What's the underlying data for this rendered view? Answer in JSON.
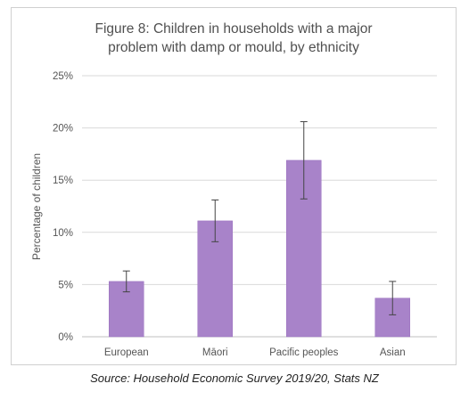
{
  "chart_data": {
    "type": "bar",
    "title": "Figure 8: Children in households with a major problem with damp or mould, by ethnicity",
    "title_lines": [
      "Figure 8: Children in households with a major",
      "problem with damp or mould, by ethnicity"
    ],
    "xlabel": "",
    "ylabel": "Percentage of children",
    "categories": [
      "European",
      "Māori",
      "Pacific peoples",
      "Asian"
    ],
    "values": [
      5.3,
      11.1,
      16.9,
      3.7
    ],
    "error_low": [
      4.3,
      9.1,
      13.2,
      2.1
    ],
    "error_high": [
      6.3,
      13.1,
      20.6,
      5.3
    ],
    "ylim": [
      0,
      25
    ],
    "yticks": [
      0,
      5,
      10,
      15,
      20,
      25
    ],
    "ytick_labels": [
      "0%",
      "5%",
      "10%",
      "15%",
      "20%",
      "25%"
    ],
    "grid": true,
    "bar_color": "#a883c9",
    "bar_edge_color": "#9b72c0",
    "source": "Source: Household Economic Survey 2019/20, Stats NZ"
  }
}
